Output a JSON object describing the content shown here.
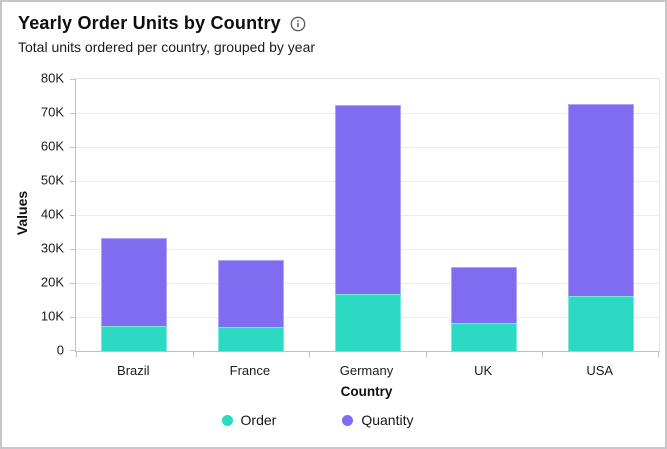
{
  "header": {
    "title": "Yearly Order Units by Country",
    "subtitle": "Total units ordered per country, grouped by year",
    "info_icon": "info-circle"
  },
  "chart_data": {
    "type": "bar",
    "variant": "stacked",
    "title": "Yearly Order Units by Country",
    "subtitle": "Total units ordered per country, grouped by year",
    "categories": [
      "Brazil",
      "France",
      "Germany",
      "UK",
      "USA"
    ],
    "series": [
      {
        "name": "Order",
        "color": "#2cd9c2",
        "values": [
          7300,
          7000,
          16900,
          8100,
          16300
        ]
      },
      {
        "name": "Quantity",
        "color": "#7f6cf1",
        "values": [
          25800,
          19800,
          55400,
          16700,
          56400
        ]
      }
    ],
    "xlabel": "Country",
    "ylabel": "Values",
    "ylim": [
      0,
      80000
    ],
    "ytick_step": 10000,
    "ytick_labels": [
      "0",
      "10K",
      "20K",
      "30K",
      "40K",
      "50K",
      "60K",
      "70K",
      "80K"
    ],
    "grid": true,
    "legend_position": "bottom"
  },
  "colors": {
    "series_order": "#2cd9c2",
    "series_quantity": "#7f6cf1",
    "info_icon": "#5f6368"
  }
}
